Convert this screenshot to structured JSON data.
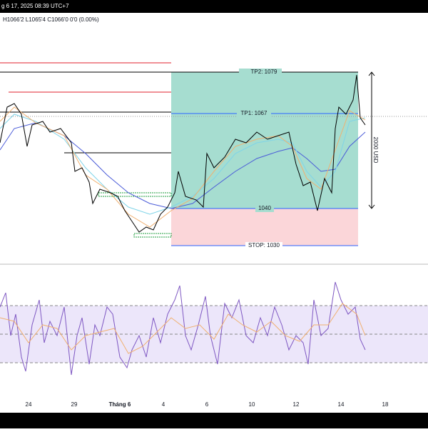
{
  "header": {
    "datetime": "g 6 17, 2025 08:39 UTC+7",
    "ohlc": "H1066'2 L1065'4 C1066'0 0'0 (0.00%)"
  },
  "levels": {
    "tp2": "TP2: 1079",
    "tp1": "TP1: 1067",
    "entry": "1040",
    "stop": "STOP: 1030",
    "range": "2000 USD"
  },
  "x_axis": [
    "24",
    "29",
    "Tháng 6",
    "4",
    "6",
    "10",
    "12",
    "14",
    "18"
  ]
}
